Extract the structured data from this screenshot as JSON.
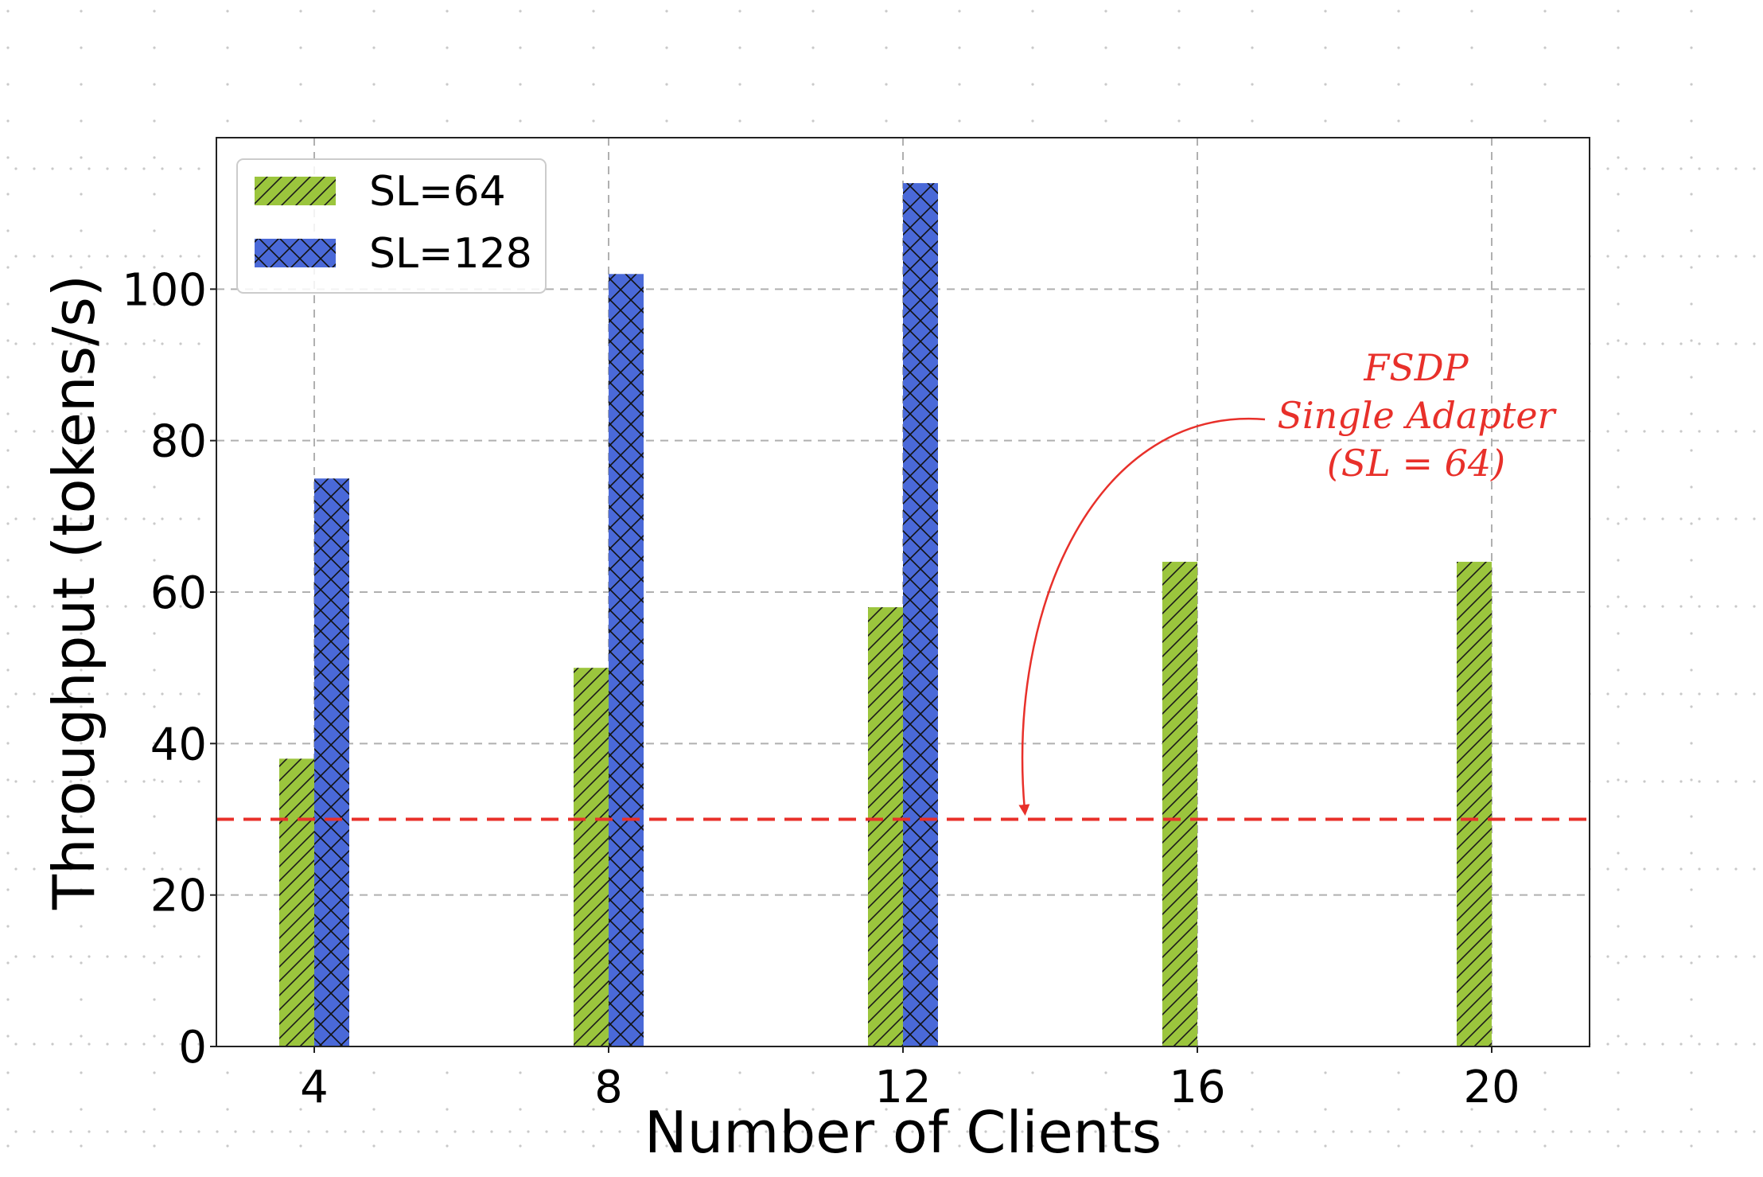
{
  "chart_data": {
    "type": "bar",
    "xlabel": "Number of Clients",
    "ylabel": "Throughput (tokens/s)",
    "categories": [
      "4",
      "8",
      "12",
      "16",
      "20"
    ],
    "x_ticks": [
      "4",
      "8",
      "12",
      "16",
      "20"
    ],
    "y_ticks": [
      "0",
      "20",
      "40",
      "60",
      "80",
      "100"
    ],
    "ylim": [
      0,
      120
    ],
    "series": [
      {
        "name": "SL=64",
        "values": [
          38,
          50,
          58,
          64,
          64
        ],
        "color": "#9bc53d",
        "hatch": "diagonal"
      },
      {
        "name": "SL=128",
        "values": [
          75,
          102,
          114,
          null,
          null
        ],
        "color": "#4a69d8",
        "hatch": "crosshatch"
      }
    ],
    "reference_line": {
      "value": 30,
      "color": "#e8302a",
      "style": "dashed"
    },
    "annotation": {
      "lines": [
        "FSDP",
        "Single Adapter",
        "(SL = 64)"
      ],
      "color": "#e8302a"
    },
    "legend_position": "top-left",
    "grid": true
  }
}
